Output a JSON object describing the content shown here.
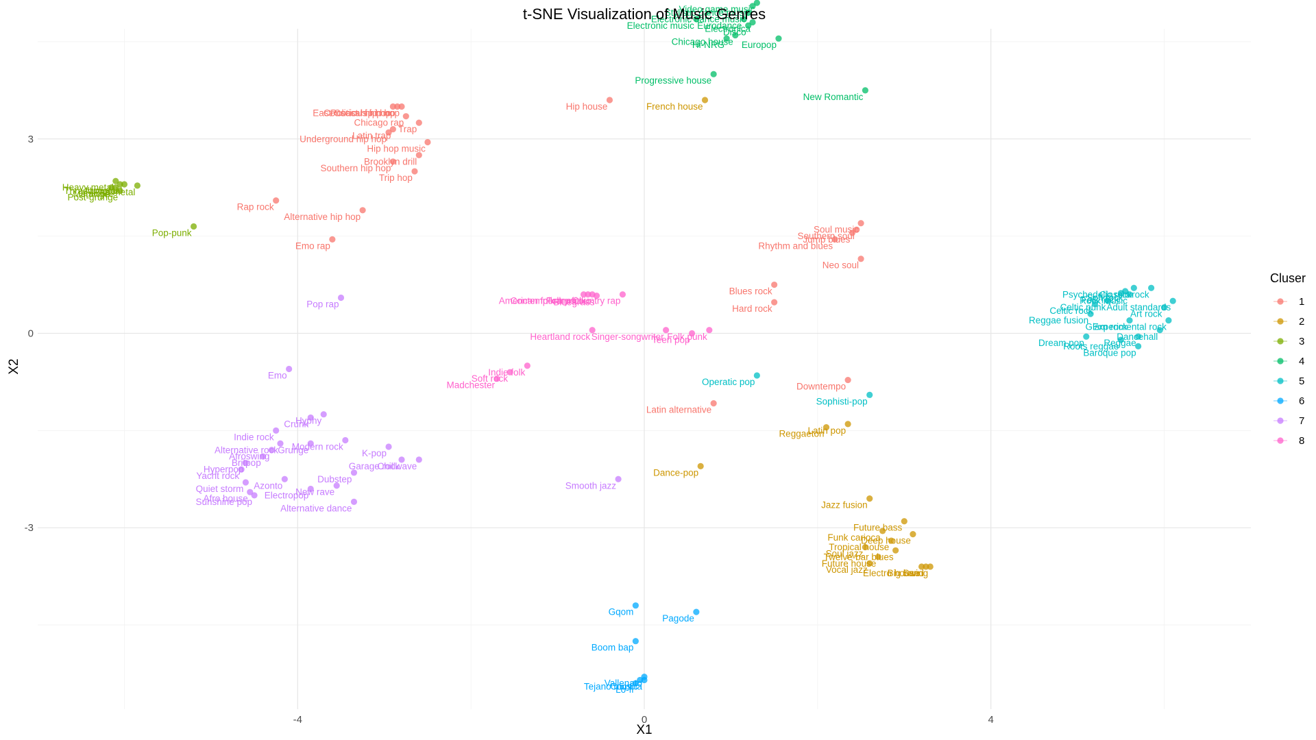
{
  "chart_data": {
    "type": "scatter",
    "title": "t-SNE Visualization of Music Genres",
    "xlabel": "X1",
    "ylabel": "X2",
    "xlim": [
      -7.0,
      7.0
    ],
    "ylim": [
      -5.8,
      4.7
    ],
    "x_ticks": [
      -4,
      0,
      4
    ],
    "y_ticks": [
      3,
      0,
      -3
    ],
    "grid": true,
    "legend": {
      "title": "Cluser",
      "position": "right",
      "entries": [
        {
          "name": "1",
          "color": "#F8766D"
        },
        {
          "name": "2",
          "color": "#CD9600"
        },
        {
          "name": "3",
          "color": "#7CAE00"
        },
        {
          "name": "4",
          "color": "#00BE67"
        },
        {
          "name": "5",
          "color": "#00BFC4"
        },
        {
          "name": "6",
          "color": "#00A9FF"
        },
        {
          "name": "7",
          "color": "#C77CFF"
        },
        {
          "name": "8",
          "color": "#FF61CC"
        }
      ]
    },
    "series": [
      {
        "name": "1",
        "points": [
          {
            "x": -2.9,
            "y": 3.5,
            "label": "East Coast hip hop"
          },
          {
            "x": -2.85,
            "y": 3.5,
            "label": "Political hip hop"
          },
          {
            "x": -2.8,
            "y": 3.5,
            "label": "Conscious hip hop"
          },
          {
            "x": -2.75,
            "y": 3.35,
            "label": "Chicago rap"
          },
          {
            "x": -2.6,
            "y": 3.25,
            "label": "Trap"
          },
          {
            "x": -2.9,
            "y": 3.15,
            "label": "Latin trap"
          },
          {
            "x": -2.95,
            "y": 3.1,
            "label": "Underground hip hop"
          },
          {
            "x": -2.5,
            "y": 2.95,
            "label": "Hip hop music"
          },
          {
            "x": -2.6,
            "y": 2.75,
            "label": "Brooklyn drill"
          },
          {
            "x": -2.9,
            "y": 2.65,
            "label": "Southern hip hop"
          },
          {
            "x": -2.65,
            "y": 2.5,
            "label": "Trip hop"
          },
          {
            "x": -4.25,
            "y": 2.05,
            "label": "Rap rock"
          },
          {
            "x": -3.25,
            "y": 1.9,
            "label": "Alternative hip hop"
          },
          {
            "x": -3.6,
            "y": 1.45,
            "label": "Emo rap"
          },
          {
            "x": -0.4,
            "y": 3.6,
            "label": "Hip house"
          },
          {
            "x": 2.5,
            "y": 1.7,
            "label": "Soul music"
          },
          {
            "x": 2.45,
            "y": 1.6,
            "label": "Southern soul"
          },
          {
            "x": 2.4,
            "y": 1.55,
            "label": "Jump blues"
          },
          {
            "x": 2.2,
            "y": 1.45,
            "label": "Rhythm and blues"
          },
          {
            "x": 2.5,
            "y": 1.15,
            "label": "Neo soul"
          },
          {
            "x": 1.5,
            "y": 0.75,
            "label": "Blues rock"
          },
          {
            "x": 1.5,
            "y": 0.48,
            "label": "Hard rock"
          },
          {
            "x": 2.35,
            "y": -0.72,
            "label": "Downtempo"
          },
          {
            "x": 0.8,
            "y": -1.08,
            "label": "Latin alternative"
          }
        ]
      },
      {
        "name": "2",
        "points": [
          {
            "x": 0.7,
            "y": 3.6,
            "label": "French house"
          },
          {
            "x": 2.35,
            "y": -1.4,
            "label": "Latin pop"
          },
          {
            "x": 2.1,
            "y": -1.45,
            "label": "Reggaeton"
          },
          {
            "x": 0.65,
            "y": -2.05,
            "label": "Dance-pop"
          },
          {
            "x": 2.6,
            "y": -2.55,
            "label": "Jazz fusion"
          },
          {
            "x": 3.0,
            "y": -2.9,
            "label": "Future bass"
          },
          {
            "x": 2.75,
            "y": -3.05,
            "label": "Funk carioca"
          },
          {
            "x": 3.1,
            "y": -3.1,
            "label": "Deep house"
          },
          {
            "x": 2.85,
            "y": -3.2,
            "label": "Tropical house"
          },
          {
            "x": 2.55,
            "y": -3.3,
            "label": "Soul jazz"
          },
          {
            "x": 2.9,
            "y": -3.35,
            "label": "Twelve-bar blues"
          },
          {
            "x": 2.7,
            "y": -3.45,
            "label": "Future house"
          },
          {
            "x": 2.6,
            "y": -3.55,
            "label": "Vocal jazz"
          },
          {
            "x": 3.2,
            "y": -3.6,
            "label": "Electro house"
          },
          {
            "x": 3.25,
            "y": -3.6,
            "label": "Big band"
          },
          {
            "x": 3.3,
            "y": -3.6,
            "label": "Swing"
          }
        ]
      },
      {
        "name": "3",
        "points": [
          {
            "x": -6.1,
            "y": 2.35,
            "label": "Heavy metal"
          },
          {
            "x": -6.05,
            "y": 2.3,
            "label": "Thrash metal"
          },
          {
            "x": -6.0,
            "y": 2.3,
            "label": "Nu metal"
          },
          {
            "x": -6.1,
            "y": 2.25,
            "label": "Metalcore"
          },
          {
            "x": -6.15,
            "y": 2.25,
            "label": "Grunge"
          },
          {
            "x": -6.05,
            "y": 2.2,
            "label": "Post-grunge"
          },
          {
            "x": -5.85,
            "y": 2.28,
            "label": "Rap metal"
          },
          {
            "x": -5.2,
            "y": 1.65,
            "label": "Pop-punk"
          }
        ]
      },
      {
        "name": "4",
        "points": [
          {
            "x": 1.3,
            "y": 5.1,
            "label": "Video game music"
          },
          {
            "x": 1.25,
            "y": 5.05,
            "label": "Stylistic dance music"
          },
          {
            "x": 1.2,
            "y": 4.95,
            "label": "Electronic dance music"
          },
          {
            "x": 1.15,
            "y": 4.85,
            "label": "Eurodance"
          },
          {
            "x": 1.25,
            "y": 4.8,
            "label": "Electronica"
          },
          {
            "x": 1.2,
            "y": 4.75,
            "label": "Disco"
          },
          {
            "x": 0.6,
            "y": 4.85,
            "label": "Electronic music"
          },
          {
            "x": 1.05,
            "y": 4.6,
            "label": "Chicago house"
          },
          {
            "x": 0.95,
            "y": 4.55,
            "label": "Hi-NRG"
          },
          {
            "x": 1.55,
            "y": 4.55,
            "label": "Europop"
          },
          {
            "x": 0.8,
            "y": 4.0,
            "label": "Progressive house"
          },
          {
            "x": 2.55,
            "y": 3.75,
            "label": "New Romantic"
          }
        ]
      },
      {
        "name": "5",
        "points": [
          {
            "x": 5.65,
            "y": 0.7,
            "label": "Psychedelic rock"
          },
          {
            "x": 5.85,
            "y": 0.7,
            "label": "Classic rock"
          },
          {
            "x": 5.55,
            "y": 0.65,
            "label": "Soft rock"
          },
          {
            "x": 5.5,
            "y": 0.62,
            "label": "Folk rock"
          },
          {
            "x": 5.6,
            "y": 0.6,
            "label": "Rock music"
          },
          {
            "x": 6.1,
            "y": 0.5,
            "label": "Adult standards"
          },
          {
            "x": 6.0,
            "y": 0.4,
            "label": "Art rock"
          },
          {
            "x": 5.35,
            "y": 0.5,
            "label": "Celtic punk"
          },
          {
            "x": 5.2,
            "y": 0.45,
            "label": "Celtic rock"
          },
          {
            "x": 5.15,
            "y": 0.3,
            "label": "Reggae fusion"
          },
          {
            "x": 5.6,
            "y": 0.2,
            "label": "Glam rock"
          },
          {
            "x": 6.05,
            "y": 0.2,
            "label": "Experimental rock"
          },
          {
            "x": 5.95,
            "y": 0.05,
            "label": "Dancehall"
          },
          {
            "x": 5.1,
            "y": -0.05,
            "label": "Dream pop"
          },
          {
            "x": 5.7,
            "y": -0.05,
            "label": "Reggae"
          },
          {
            "x": 5.5,
            "y": -0.1,
            "label": "Roots reggae"
          },
          {
            "x": 5.7,
            "y": -0.2,
            "label": "Baroque pop"
          },
          {
            "x": 1.3,
            "y": -0.65,
            "label": "Operatic pop"
          },
          {
            "x": 2.6,
            "y": -0.95,
            "label": "Sophisti-pop"
          }
        ]
      },
      {
        "name": "6",
        "points": [
          {
            "x": -0.1,
            "y": -4.2,
            "label": "Gqom"
          },
          {
            "x": 0.6,
            "y": -4.3,
            "label": "Pagode"
          },
          {
            "x": -0.1,
            "y": -4.75,
            "label": "Boom bap"
          },
          {
            "x": 0.0,
            "y": -5.3,
            "label": "Vallenato"
          },
          {
            "x": -0.05,
            "y": -5.35,
            "label": "Tejano music"
          },
          {
            "x": 0.0,
            "y": -5.35,
            "label": "Cumbia"
          },
          {
            "x": -0.1,
            "y": -5.4,
            "label": "Lo-fi"
          }
        ]
      },
      {
        "name": "7",
        "points": [
          {
            "x": -3.5,
            "y": 0.55,
            "label": "Pop rap"
          },
          {
            "x": -4.1,
            "y": -0.55,
            "label": "Emo"
          },
          {
            "x": -3.7,
            "y": -1.25,
            "label": "Hyphy"
          },
          {
            "x": -3.85,
            "y": -1.3,
            "label": "Crunk"
          },
          {
            "x": -4.25,
            "y": -1.5,
            "label": "Indie rock"
          },
          {
            "x": -4.2,
            "y": -1.7,
            "label": "Alternative rock"
          },
          {
            "x": -3.85,
            "y": -1.7,
            "label": "Grunge"
          },
          {
            "x": -3.45,
            "y": -1.65,
            "label": "Modern rock"
          },
          {
            "x": -4.3,
            "y": -1.8,
            "label": "Afroswing"
          },
          {
            "x": -4.4,
            "y": -1.9,
            "label": "Britpop"
          },
          {
            "x": -4.6,
            "y": -2.0,
            "label": "Hyperpop"
          },
          {
            "x": -2.95,
            "y": -1.75,
            "label": "K-pop"
          },
          {
            "x": -2.8,
            "y": -1.95,
            "label": "Garage rock"
          },
          {
            "x": -2.6,
            "y": -1.95,
            "label": "Chillwave"
          },
          {
            "x": -4.65,
            "y": -2.1,
            "label": "Yacht rock"
          },
          {
            "x": -4.15,
            "y": -2.25,
            "label": "Azonto"
          },
          {
            "x": -3.35,
            "y": -2.15,
            "label": "Dubstep"
          },
          {
            "x": -3.85,
            "y": -2.4,
            "label": "Electropop"
          },
          {
            "x": -4.6,
            "y": -2.3,
            "label": "Quiet storm"
          },
          {
            "x": -3.55,
            "y": -2.35,
            "label": "New rave"
          },
          {
            "x": -4.55,
            "y": -2.45,
            "label": "Afro house"
          },
          {
            "x": -4.5,
            "y": -2.5,
            "label": "Sunshine pop"
          },
          {
            "x": -3.35,
            "y": -2.6,
            "label": "Alternative dance"
          },
          {
            "x": -0.3,
            "y": -2.25,
            "label": "Smooth jazz"
          }
        ]
      },
      {
        "name": "8",
        "points": [
          {
            "x": -0.7,
            "y": 0.6,
            "label": "American folk music"
          },
          {
            "x": -0.65,
            "y": 0.6,
            "label": "Contemporary folk"
          },
          {
            "x": -0.6,
            "y": 0.6,
            "label": "Folk music"
          },
          {
            "x": -0.55,
            "y": 0.58,
            "label": "Bluegrass"
          },
          {
            "x": -0.25,
            "y": 0.6,
            "label": "Country rap"
          },
          {
            "x": -0.6,
            "y": 0.05,
            "label": "Heartland rock"
          },
          {
            "x": 0.25,
            "y": 0.05,
            "label": "Singer-songwriter"
          },
          {
            "x": 0.75,
            "y": 0.05,
            "label": "Folk punk"
          },
          {
            "x": 0.55,
            "y": 0.0,
            "label": "Teen pop"
          },
          {
            "x": -1.35,
            "y": -0.5,
            "label": "Indie folk"
          },
          {
            "x": -1.55,
            "y": -0.6,
            "label": "Soft rock"
          },
          {
            "x": -1.7,
            "y": -0.7,
            "label": "Madchester"
          }
        ]
      }
    ]
  }
}
